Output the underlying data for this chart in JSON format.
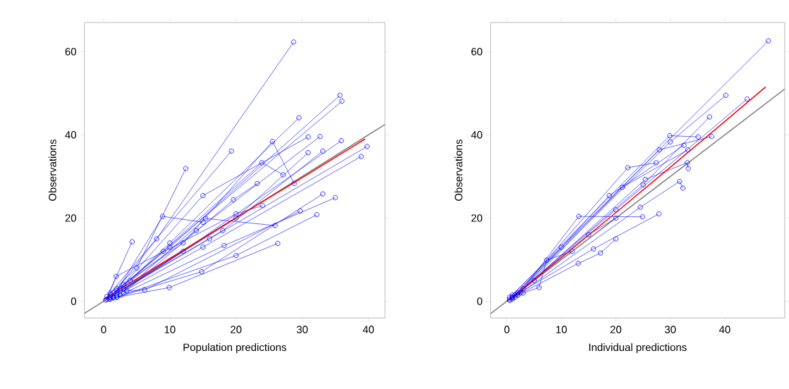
{
  "chart_data": [
    {
      "type": "line",
      "xlabel": "Population predictions",
      "ylabel": "Observations",
      "xlim": [
        -2.9,
        42.5
      ],
      "ylim": [
        -4,
        67
      ],
      "xticks": [
        0,
        10,
        20,
        30,
        40
      ],
      "yticks": [
        0,
        20,
        40,
        60
      ],
      "grid": false,
      "series": [
        {
          "color": "#808080",
          "marker": "none",
          "x": [
            -2.9,
            42.5
          ],
          "values": [
            -2.9,
            42.5
          ]
        },
        {
          "color": "#0000ff",
          "marker": "circle",
          "x": [
            0.5,
            5,
            12.4
          ],
          "values": [
            1.2,
            8,
            31.9
          ]
        },
        {
          "color": "#0000ff",
          "marker": "circle",
          "x": [
            1,
            8,
            28.7
          ],
          "values": [
            0.8,
            15,
            62.3
          ]
        },
        {
          "color": "#0000ff",
          "marker": "circle",
          "x": [
            1.5,
            10,
            35.7
          ],
          "values": [
            2,
            13,
            49.5
          ]
        },
        {
          "color": "#0000ff",
          "marker": "circle",
          "x": [
            1.2,
            9,
            36.0
          ],
          "values": [
            1.5,
            12,
            48.1
          ]
        },
        {
          "color": "#0000ff",
          "marker": "circle",
          "x": [
            0.8,
            10,
            29.5
          ],
          "values": [
            0.5,
            14,
            44.1
          ]
        },
        {
          "color": "#0000ff",
          "marker": "circle",
          "x": [
            2,
            12,
            25.5,
            28.8
          ],
          "values": [
            3,
            14,
            38.4,
            28.3
          ]
        },
        {
          "color": "#0000ff",
          "marker": "circle",
          "x": [
            1,
            19.3
          ],
          "values": [
            2,
            36.1
          ]
        },
        {
          "color": "#0000ff",
          "marker": "circle",
          "x": [
            0.3,
            4.3
          ],
          "values": [
            0.3,
            14.3
          ]
        },
        {
          "color": "#0000ff",
          "marker": "circle",
          "x": [
            2,
            8.9,
            15
          ],
          "values": [
            2.5,
            20.4,
            19
          ]
        },
        {
          "color": "#0000ff",
          "marker": "circle",
          "x": [
            3,
            15,
            30.9
          ],
          "values": [
            4,
            25.4,
            39.5
          ]
        },
        {
          "color": "#0000ff",
          "marker": "circle",
          "x": [
            2.5,
            14,
            32.7
          ],
          "values": [
            3,
            17,
            39.6
          ]
        },
        {
          "color": "#0000ff",
          "marker": "circle",
          "x": [
            1.5,
            12,
            35.9
          ],
          "values": [
            1,
            12,
            38.6
          ]
        },
        {
          "color": "#0000ff",
          "marker": "circle",
          "x": [
            1,
            16,
            39.8
          ],
          "values": [
            1,
            15,
            37.2
          ]
        },
        {
          "color": "#0000ff",
          "marker": "circle",
          "x": [
            2,
            15,
            38.9
          ],
          "values": [
            1.5,
            13,
            34.8
          ]
        },
        {
          "color": "#0000ff",
          "marker": "circle",
          "x": [
            3,
            18,
            33.1
          ],
          "values": [
            3,
            17,
            36.1
          ]
        },
        {
          "color": "#0000ff",
          "marker": "circle",
          "x": [
            2,
            20,
            30.9
          ],
          "values": [
            2,
            20,
            35.7
          ]
        },
        {
          "color": "#0000ff",
          "marker": "circle",
          "x": [
            4,
            23.9,
            27.1
          ],
          "values": [
            5,
            33.3,
            30.4
          ]
        },
        {
          "color": "#0000ff",
          "marker": "circle",
          "x": [
            3,
            19.6,
            23.2
          ],
          "values": [
            2,
            24.4,
            28.3
          ]
        },
        {
          "color": "#0000ff",
          "marker": "circle",
          "x": [
            2,
            15.4,
            25.9
          ],
          "values": [
            1,
            19.9,
            18.2
          ]
        },
        {
          "color": "#0000ff",
          "marker": "circle",
          "x": [
            1,
            14.8,
            33.1
          ],
          "values": [
            0.5,
            7.1,
            25.8
          ]
        },
        {
          "color": "#0000ff",
          "marker": "circle",
          "x": [
            2.5,
            18.2,
            35
          ],
          "values": [
            1.5,
            13.4,
            24.9
          ]
        },
        {
          "color": "#0000ff",
          "marker": "circle",
          "x": [
            1.5,
            9.9,
            26.3
          ],
          "values": [
            0.8,
            3.3,
            13.9
          ]
        },
        {
          "color": "#0000ff",
          "marker": "circle",
          "x": [
            2,
            20,
            32.2
          ],
          "values": [
            1,
            11,
            20.8
          ]
        },
        {
          "color": "#0000ff",
          "marker": "circle",
          "x": [
            3.5,
            6.2,
            29.7
          ],
          "values": [
            2.5,
            2.7,
            21.7
          ]
        },
        {
          "color": "#0000ff",
          "marker": "circle",
          "x": [
            0.5,
            1.9,
            20,
            24
          ],
          "values": [
            0.5,
            6.0,
            21,
            23
          ]
        },
        {
          "color": "#ff0000",
          "marker": "none",
          "x": [
            0,
            10,
            20,
            30,
            39.5
          ],
          "values": [
            0.5,
            10.3,
            20.1,
            29.7,
            39
          ]
        }
      ]
    },
    {
      "type": "line",
      "xlabel": "Individual predictions",
      "ylabel": "Observations",
      "xlim": [
        -3,
        51
      ],
      "ylim": [
        -4,
        67
      ],
      "xticks": [
        0,
        10,
        20,
        30,
        40
      ],
      "yticks": [
        0,
        20,
        40,
        60
      ],
      "grid": false,
      "series": [
        {
          "color": "#808080",
          "marker": "none",
          "x": [
            -3,
            51
          ],
          "values": [
            -3,
            51
          ]
        },
        {
          "color": "#0000ff",
          "marker": "circle",
          "x": [
            0.5,
            10,
            48
          ],
          "values": [
            1,
            13,
            62.6
          ]
        },
        {
          "color": "#0000ff",
          "marker": "circle",
          "x": [
            1,
            30,
            40.2
          ],
          "values": [
            1,
            38.3,
            49.5
          ]
        },
        {
          "color": "#0000ff",
          "marker": "circle",
          "x": [
            1,
            20,
            44.1
          ],
          "values": [
            0.8,
            22,
            48.6
          ]
        },
        {
          "color": "#0000ff",
          "marker": "circle",
          "x": [
            1.5,
            25,
            37.2
          ],
          "values": [
            1.5,
            28,
            44.3
          ]
        },
        {
          "color": "#0000ff",
          "marker": "circle",
          "x": [
            1,
            29.9,
            35.1
          ],
          "values": [
            1.5,
            39.8,
            39.5
          ]
        },
        {
          "color": "#0000ff",
          "marker": "circle",
          "x": [
            0.5,
            28,
            37.6
          ],
          "values": [
            0.5,
            36.4,
            39.6
          ]
        },
        {
          "color": "#0000ff",
          "marker": "circle",
          "x": [
            2,
            22.2,
            27.4
          ],
          "values": [
            2,
            32.1,
            33.3
          ]
        },
        {
          "color": "#0000ff",
          "marker": "circle",
          "x": [
            1.5,
            18.8,
            32.5
          ],
          "values": [
            1,
            25.4,
            37.5
          ]
        },
        {
          "color": "#0000ff",
          "marker": "circle",
          "x": [
            2,
            21.2,
            33.2
          ],
          "values": [
            1.5,
            27.4,
            36.4
          ]
        },
        {
          "color": "#0000ff",
          "marker": "circle",
          "x": [
            1,
            25.4,
            33.1,
            33.3
          ],
          "values": [
            0.5,
            29.3,
            33.3,
            31.9
          ]
        },
        {
          "color": "#0000ff",
          "marker": "circle",
          "x": [
            3,
            13.2,
            24.9
          ],
          "values": [
            3,
            20.4,
            20.3
          ]
        },
        {
          "color": "#0000ff",
          "marker": "circle",
          "x": [
            2.5,
            24.5,
            31.7,
            32.3
          ],
          "values": [
            2,
            22.6,
            28.8,
            27.2
          ]
        },
        {
          "color": "#0000ff",
          "marker": "circle",
          "x": [
            1,
            15.9,
            27.9
          ],
          "values": [
            1,
            12.6,
            21.0
          ]
        },
        {
          "color": "#0000ff",
          "marker": "circle",
          "x": [
            2,
            13.1,
            17.2,
            20
          ],
          "values": [
            1.5,
            9.1,
            11.6,
            15
          ]
        },
        {
          "color": "#0000ff",
          "marker": "circle",
          "x": [
            3,
            5.9,
            7.3,
            12
          ],
          "values": [
            2,
            3.3,
            9.9,
            12
          ]
        },
        {
          "color": "#0000ff",
          "marker": "circle",
          "x": [
            0.5,
            5,
            15,
            20
          ],
          "values": [
            0.2,
            5,
            16,
            20
          ]
        },
        {
          "color": "#ff0000",
          "marker": "none",
          "x": [
            0,
            10,
            20,
            30,
            40,
            47.5
          ],
          "values": [
            0,
            10.5,
            21.3,
            32.2,
            43.2,
            51.5
          ]
        }
      ]
    }
  ]
}
